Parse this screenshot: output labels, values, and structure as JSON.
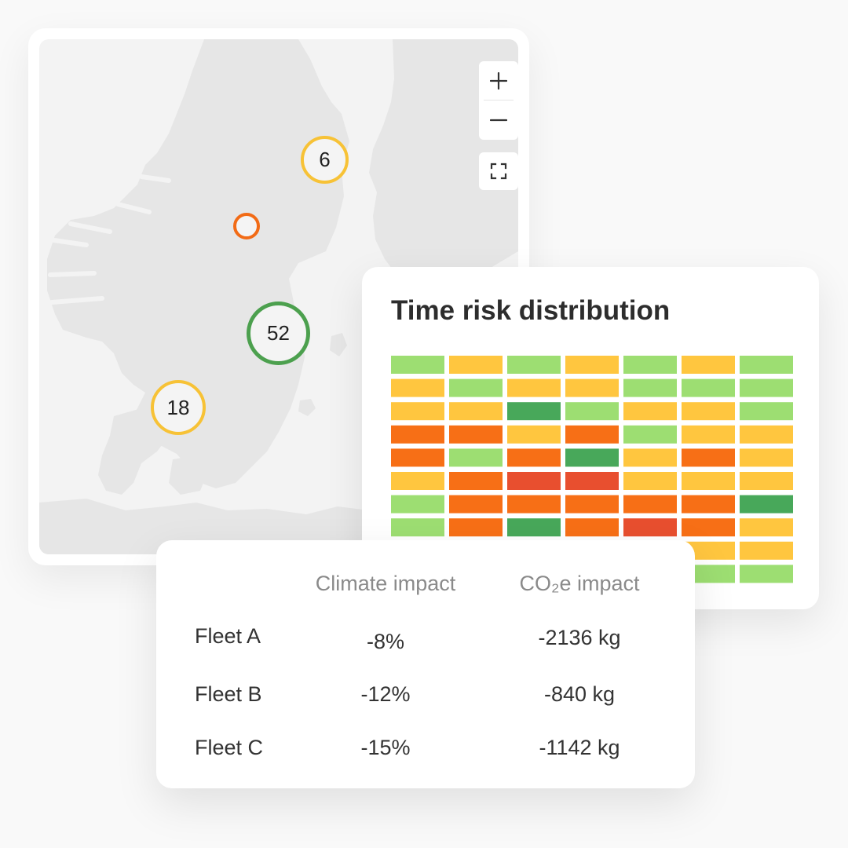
{
  "map": {
    "zoom_in_symbol": "+",
    "zoom_out_symbol": "−",
    "fullscreen_icon": "fullscreen-icon",
    "clusters": [
      {
        "label": "6",
        "color": "#f7c236"
      },
      {
        "label": "",
        "color": "#f26b16"
      },
      {
        "label": "52",
        "color": "#4ca04e"
      },
      {
        "label": "18",
        "color": "#f7c236"
      }
    ]
  },
  "heatmap": {
    "title": "Time risk distribution",
    "palette": {
      "g": "#9dde72",
      "y": "#ffc63f",
      "dg": "#48a85a",
      "o": "#f76f16",
      "r": "#e84f2f"
    },
    "grid": [
      [
        "g",
        "y",
        "g",
        "y",
        "g",
        "y",
        "g"
      ],
      [
        "y",
        "g",
        "y",
        "y",
        "g",
        "g",
        "g"
      ],
      [
        "y",
        "y",
        "dg",
        "g",
        "y",
        "y",
        "g"
      ],
      [
        "o",
        "o",
        "y",
        "o",
        "g",
        "y",
        "y"
      ],
      [
        "o",
        "g",
        "o",
        "dg",
        "y",
        "o",
        "y"
      ],
      [
        "y",
        "o",
        "r",
        "r",
        "y",
        "y",
        "y"
      ],
      [
        "g",
        "o",
        "o",
        "o",
        "o",
        "o",
        "dg"
      ],
      [
        "g",
        "o",
        "dg",
        "o",
        "r",
        "o",
        "y"
      ],
      [
        "y",
        "y",
        "g",
        "g",
        "y",
        "y",
        "y"
      ],
      [
        "g",
        "g",
        "g",
        "g",
        "g",
        "g",
        "g"
      ]
    ]
  },
  "table": {
    "headers": {
      "climate": "Climate impact",
      "co2": "CO₂e impact"
    },
    "rows": [
      {
        "fleet": "Fleet A",
        "climate": "-8%",
        "co2": "-2136 kg"
      },
      {
        "fleet": "Fleet B",
        "climate": "-12%",
        "co2": "-840 kg"
      },
      {
        "fleet": "Fleet C",
        "climate": "-15%",
        "co2": "-1142 kg"
      }
    ]
  }
}
